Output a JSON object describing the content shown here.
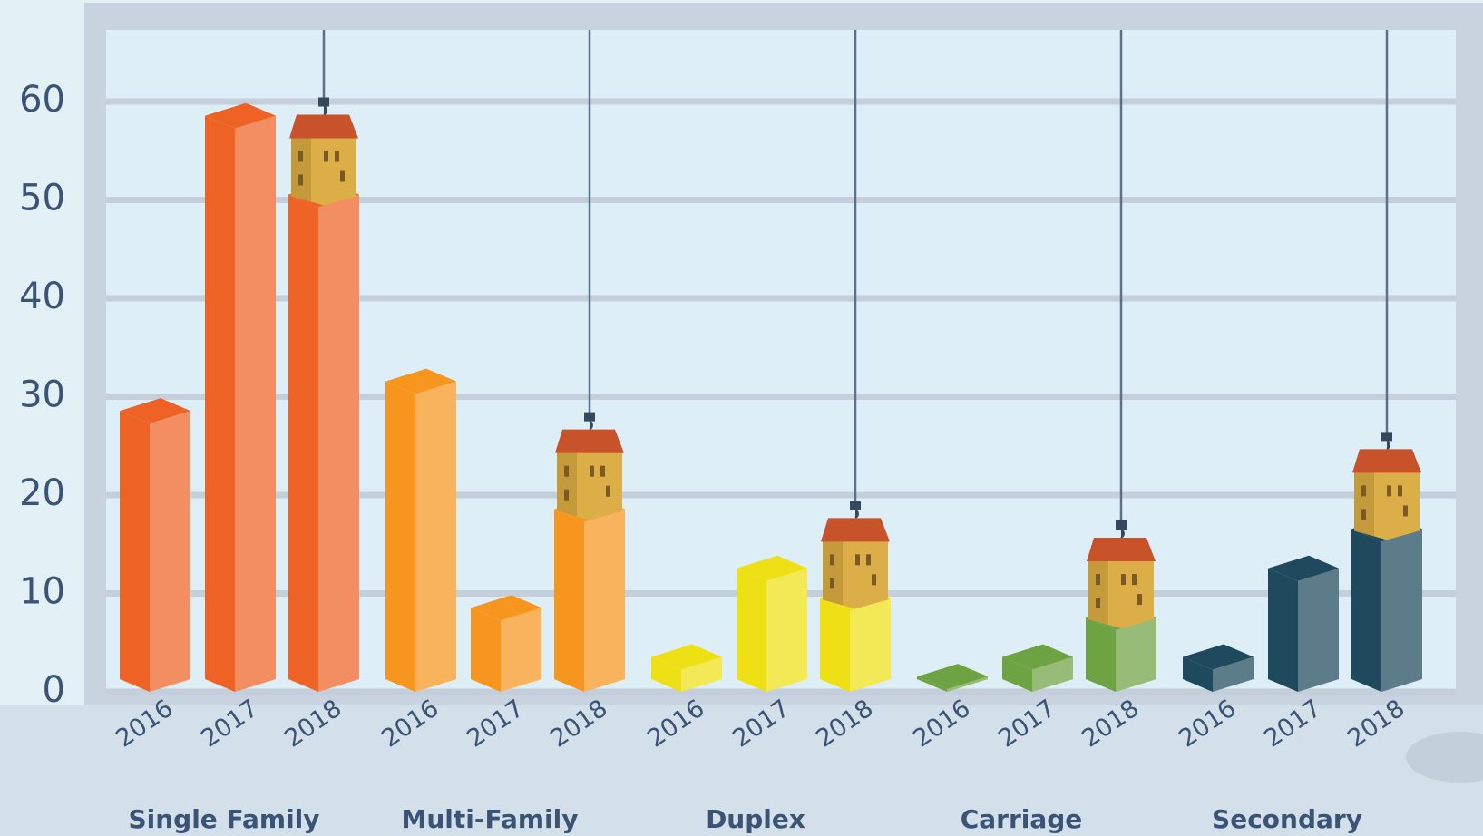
{
  "chart_data": {
    "type": "bar3d",
    "categories": [
      "Single Family",
      "Multi-Family",
      "Duplex",
      "Carriage",
      "Secondary"
    ],
    "colors": [
      "#ee6325",
      "#f7961e",
      "#efe016",
      "#6ea344",
      "#1f4a5e"
    ],
    "series": [
      {
        "name": "2016",
        "values": [
          28,
          31,
          3,
          1,
          3
        ]
      },
      {
        "name": "2017",
        "values": [
          58,
          8,
          12,
          3,
          12
        ]
      },
      {
        "name": "2018",
        "values": [
          50,
          18,
          9,
          7,
          16
        ]
      }
    ],
    "ylim": [
      0,
      67
    ],
    "yticks": [
      0,
      10,
      20,
      30,
      40,
      50,
      60
    ],
    "grid": true
  }
}
